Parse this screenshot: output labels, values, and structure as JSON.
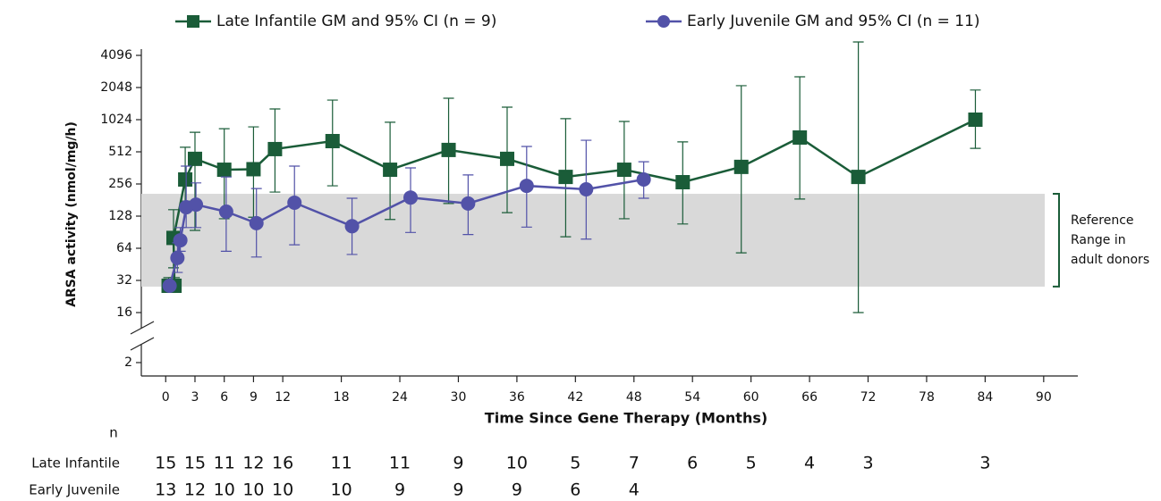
{
  "chart_data": {
    "type": "line",
    "y_label": "ARSA activity (nmol/mg/h)",
    "x_label": "Time Since Gene Therapy (Months)",
    "log_y": true,
    "y_break": true,
    "xlim": [
      -2.5,
      93.5
    ],
    "xticks": [
      0,
      3,
      6,
      9,
      12,
      18,
      24,
      30,
      36,
      42,
      48,
      54,
      60,
      66,
      72,
      78,
      84,
      90
    ],
    "ylim": [
      2,
      4700
    ],
    "yticks": [
      2,
      16,
      32,
      64,
      128,
      256,
      512,
      1024,
      2048,
      4096
    ],
    "reference_range": {
      "low": 28,
      "high": 207,
      "label": [
        "Reference",
        "Range in",
        "adult donors"
      ],
      "color": "#d9d9d9",
      "bracket_color": "#1a5c38"
    },
    "series": [
      {
        "name": "Late Infantile GM and 95% CI (n = 9)",
        "color": "#1a5c38",
        "marker": "square",
        "x": [
          0.3,
          0.9,
          0.8,
          2,
          3,
          6,
          9,
          11.2,
          17.1,
          23,
          29,
          35,
          41,
          47,
          53,
          59,
          65,
          71,
          83
        ],
        "values": [
          28.5,
          28.5,
          80,
          282,
          440,
          348,
          352,
          543,
          645,
          348,
          533,
          440,
          298,
          348,
          266,
          370,
          697,
          298,
          1024
        ],
        "ci_low": [
          25,
          25,
          42,
          177,
          94,
          121,
          125,
          215,
          246,
          119,
          168,
          138,
          82,
          121,
          108,
          58,
          185,
          16,
          552
        ],
        "ci_high": [
          34,
          34,
          147,
          565,
          780,
          843,
          877,
          1290,
          1562,
          969,
          1625,
          1340,
          1046,
          985,
          634,
          2130,
          2580,
          5470,
          1940
        ]
      },
      {
        "name": "Early Juvenile GM and 95% CI (n = 11)",
        "color": "#5252a8",
        "marker": "circle",
        "x": [
          0.4,
          1.2,
          1.5,
          2.1,
          3.1,
          6.2,
          9.3,
          13.2,
          19.1,
          25.1,
          31,
          37,
          43.1,
          49
        ],
        "values": [
          28.5,
          52,
          76,
          155,
          164,
          141,
          110,
          171,
          103,
          191,
          168,
          246,
          228,
          282
        ],
        "ci_low": [
          26,
          38,
          60,
          100,
          100,
          60,
          53,
          69,
          56,
          90,
          86,
          101,
          78,
          188
        ],
        "ci_high": [
          31,
          72,
          100,
          376,
          262,
          298,
          232,
          376,
          188,
          362,
          311,
          575,
          657,
          413
        ]
      }
    ],
    "n_table": {
      "title": "n",
      "months": [
        0,
        3,
        6,
        9,
        12,
        18,
        24,
        30,
        36,
        42,
        48,
        54,
        60,
        66,
        72,
        84
      ],
      "rows": [
        {
          "label": "Late Infantile",
          "counts": [
            15,
            15,
            11,
            12,
            16,
            11,
            11,
            9,
            10,
            5,
            7,
            6,
            5,
            4,
            3,
            3
          ]
        },
        {
          "label": "Early Juvenile",
          "counts": [
            13,
            12,
            10,
            10,
            10,
            10,
            9,
            9,
            9,
            6,
            4
          ]
        }
      ]
    }
  }
}
